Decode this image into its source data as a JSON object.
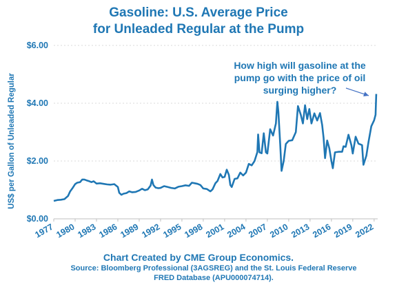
{
  "chart_data": {
    "type": "line",
    "title_line1": "Gasoline:  U.S. Average Price",
    "title_line2": "for Unleaded Regular at the Pump",
    "ylabel": "US$ per Gallon of Unleaded Regular",
    "y_ticks": [
      "$0.00",
      "$2.00",
      "$4.00",
      "$6.00"
    ],
    "ylim": [
      0,
      6
    ],
    "xlim": [
      1977,
      2022.5
    ],
    "x_ticks": [
      "1977",
      "1980",
      "1983",
      "1986",
      "1989",
      "1992",
      "1995",
      "1998",
      "2001",
      "2004",
      "2007",
      "2010",
      "2013",
      "2016",
      "2019",
      "2022"
    ],
    "annotation": "How high will gasoline at the pump go with the price of oil surging higher?",
    "series": [
      {
        "color": "#1f77b4",
        "x": [
          1977.0,
          1977.5,
          1978.0,
          1978.5,
          1979.0,
          1979.3,
          1979.6,
          1980.0,
          1980.3,
          1980.7,
          1981.0,
          1981.3,
          1981.6,
          1982.0,
          1982.3,
          1982.6,
          1983.0,
          1983.5,
          1984.0,
          1984.5,
          1985.0,
          1985.5,
          1986.0,
          1986.2,
          1986.5,
          1986.8,
          1987.2,
          1987.6,
          1988.0,
          1988.5,
          1989.0,
          1989.4,
          1989.8,
          1990.2,
          1990.6,
          1990.8,
          1991.0,
          1991.3,
          1991.7,
          1992.0,
          1992.5,
          1993.0,
          1993.5,
          1994.0,
          1994.5,
          1995.0,
          1995.5,
          1996.0,
          1996.4,
          1996.8,
          1997.2,
          1997.6,
          1998.0,
          1998.5,
          1999.0,
          1999.3,
          1999.7,
          2000.0,
          2000.4,
          2000.7,
          2001.0,
          2001.3,
          2001.6,
          2001.8,
          2002.0,
          2002.4,
          2002.8,
          2003.2,
          2003.6,
          2004.0,
          2004.4,
          2004.8,
          2005.2,
          2005.6,
          2005.7,
          2005.9,
          2006.2,
          2006.5,
          2006.8,
          2007.0,
          2007.4,
          2007.8,
          2008.2,
          2008.4,
          2008.55,
          2008.8,
          2009.0,
          2009.3,
          2009.6,
          2010.0,
          2010.5,
          2011.0,
          2011.3,
          2011.7,
          2012.0,
          2012.3,
          2012.6,
          2012.9,
          2013.2,
          2013.6,
          2014.0,
          2014.4,
          2014.7,
          2014.9,
          2015.1,
          2015.4,
          2015.7,
          2016.0,
          2016.2,
          2016.5,
          2017.0,
          2017.5,
          2017.7,
          2018.0,
          2018.4,
          2018.8,
          2019.0,
          2019.4,
          2019.8,
          2020.0,
          2020.3,
          2020.5,
          2020.9,
          2021.2,
          2021.6,
          2022.0,
          2022.2,
          2022.3
        ],
        "y": [
          0.62,
          0.65,
          0.66,
          0.68,
          0.79,
          0.95,
          1.05,
          1.2,
          1.25,
          1.27,
          1.36,
          1.36,
          1.33,
          1.3,
          1.27,
          1.3,
          1.22,
          1.23,
          1.21,
          1.19,
          1.18,
          1.2,
          1.1,
          0.9,
          0.83,
          0.87,
          0.89,
          0.95,
          0.92,
          0.93,
          0.98,
          1.04,
          0.99,
          1.02,
          1.15,
          1.36,
          1.17,
          1.08,
          1.06,
          1.07,
          1.13,
          1.1,
          1.07,
          1.05,
          1.11,
          1.13,
          1.16,
          1.14,
          1.25,
          1.23,
          1.21,
          1.17,
          1.05,
          1.03,
          0.95,
          1.02,
          1.23,
          1.31,
          1.55,
          1.43,
          1.45,
          1.7,
          1.52,
          1.17,
          1.1,
          1.38,
          1.4,
          1.6,
          1.5,
          1.6,
          1.9,
          1.85,
          2.0,
          2.31,
          2.92,
          2.3,
          2.27,
          2.96,
          2.3,
          2.26,
          3.1,
          2.88,
          3.3,
          4.05,
          3.7,
          2.6,
          1.66,
          2.0,
          2.59,
          2.7,
          2.72,
          3.0,
          3.9,
          3.6,
          3.3,
          3.93,
          3.45,
          3.8,
          3.3,
          3.65,
          3.4,
          3.66,
          3.25,
          2.8,
          2.1,
          2.71,
          2.44,
          1.99,
          1.75,
          2.3,
          2.32,
          2.32,
          2.51,
          2.49,
          2.91,
          2.55,
          2.26,
          2.84,
          2.6,
          2.58,
          2.55,
          1.87,
          2.18,
          2.65,
          3.2,
          3.41,
          3.6,
          4.32
        ]
      }
    ]
  },
  "annotation_lines": [
    "How high will gasoline at the",
    "pump go with the price of oil",
    "surging higher?"
  ],
  "footer": {
    "credit": "Chart Created by CME Group Economics.",
    "source_line1": "Source:  Bloomberg Professional (3AGSREG) and the St. Louis Federal Reserve",
    "source_line2": "FRED Database (APU000074714)."
  }
}
